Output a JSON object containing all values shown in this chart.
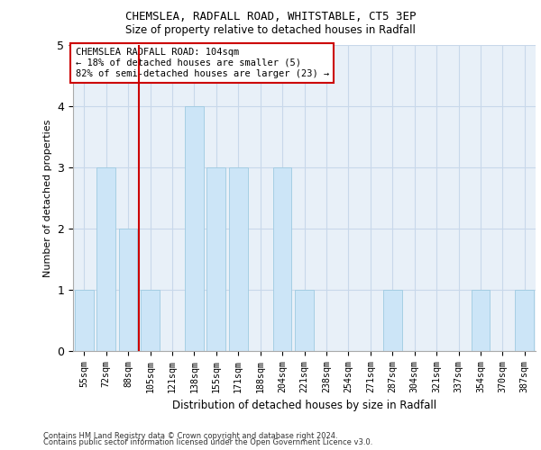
{
  "title1": "CHEMSLEA, RADFALL ROAD, WHITSTABLE, CT5 3EP",
  "title2": "Size of property relative to detached houses in Radfall",
  "xlabel": "Distribution of detached houses by size in Radfall",
  "ylabel": "Number of detached properties",
  "bin_labels": [
    "55sqm",
    "72sqm",
    "88sqm",
    "105sqm",
    "121sqm",
    "138sqm",
    "155sqm",
    "171sqm",
    "188sqm",
    "204sqm",
    "221sqm",
    "238sqm",
    "254sqm",
    "271sqm",
    "287sqm",
    "304sqm",
    "321sqm",
    "337sqm",
    "354sqm",
    "370sqm",
    "387sqm"
  ],
  "values": [
    1,
    3,
    2,
    1,
    0,
    4,
    3,
    3,
    0,
    3,
    1,
    0,
    0,
    0,
    1,
    0,
    0,
    0,
    1,
    0,
    1
  ],
  "bar_color": "#cce5f7",
  "bar_edge_color": "#9ecae1",
  "grid_color": "#c8d8ea",
  "background_color": "#e8f0f8",
  "red_line_bin": 3,
  "annotation_title": "CHEMSLEA RADFALL ROAD: 104sqm",
  "annotation_line1": "← 18% of detached houses are smaller (5)",
  "annotation_line2": "82% of semi-detached houses are larger (23) →",
  "footer1": "Contains HM Land Registry data © Crown copyright and database right 2024.",
  "footer2": "Contains public sector information licensed under the Open Government Licence v3.0.",
  "ylim": [
    0,
    5
  ],
  "yticks": [
    0,
    1,
    2,
    3,
    4,
    5
  ]
}
